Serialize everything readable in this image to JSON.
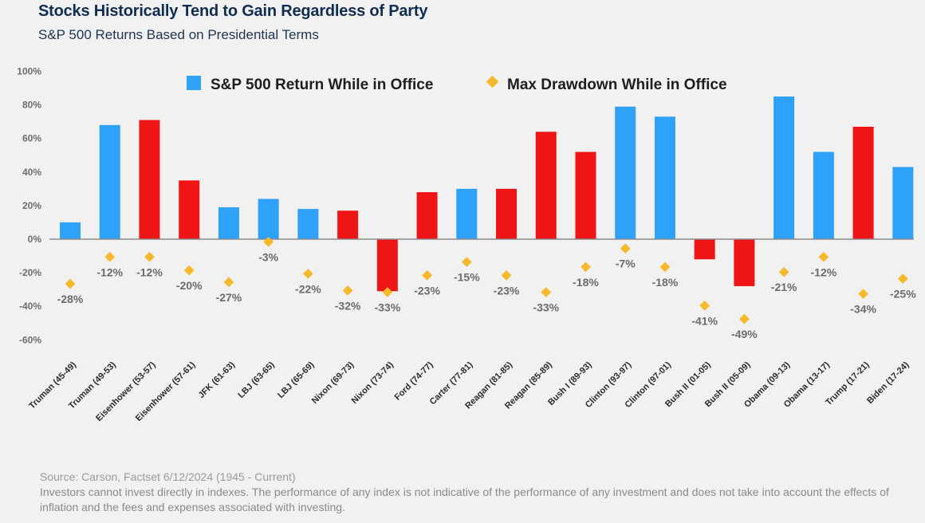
{
  "header": {
    "title": "Stocks Historically Tend to Gain Regardless of Party",
    "subtitle": "S&P 500 Returns Based on Presidential Terms"
  },
  "footer": {
    "source": "Source: Carson, Factset 6/12/2024 (1945 - Current)",
    "disclaimer": "Investors cannot invest directly in indexes. The performance of any index is not indicative of the performance of any investment and does not take into account the effects of inflation and the fees and expenses associated with investing."
  },
  "colors": {
    "democrat": "#2ea1f8",
    "republican": "#f01515",
    "drawdown": "#f6b92b",
    "axis": "#8a8a8a"
  },
  "chart_data": {
    "type": "bar",
    "title": "Stocks Historically Tend to Gain Regardless of Party",
    "subtitle": "S&P 500 Returns Based on Presidential Terms",
    "xlabel": "",
    "ylabel": "",
    "ylim": [
      -60,
      100
    ],
    "yticks": [
      100,
      80,
      60,
      40,
      20,
      0,
      -20,
      -40,
      -60
    ],
    "ytick_labels": [
      "100%",
      "80%",
      "60%",
      "40%",
      "20%",
      "0%",
      "-20%",
      "-40%",
      "-60%"
    ],
    "grid": false,
    "legend_position": "top-center",
    "legend": [
      {
        "name": "S&P 500 Return While in Office",
        "marker": "square",
        "color": "#2ea1f8"
      },
      {
        "name": "Max Drawdown While in Office",
        "marker": "diamond",
        "color": "#f6b92b"
      }
    ],
    "categories": [
      "Truman (45-49)",
      "Truman (49-53)",
      "Eisenhower (53-57)",
      "Eisenhower (57-61)",
      "JFK (61-63)",
      "LBJ (63-65)",
      "LBJ (65-69)",
      "Nixon (69-73)",
      "Nixon (73-74)",
      "Ford (74-77)",
      "Carter (77-81)",
      "Reagan (81-85)",
      "Reagan (85-89)",
      "Bush I (89-93)",
      "Clinton (93-97)",
      "Clinton (97-01)",
      "Bush II (01-05)",
      "Bush II (05-09)",
      "Obama (09-13)",
      "Obama (13-17)",
      "Trump (17-21)",
      "Biden (17-24)"
    ],
    "party": [
      "D",
      "D",
      "R",
      "R",
      "D",
      "D",
      "D",
      "R",
      "R",
      "R",
      "D",
      "R",
      "R",
      "R",
      "D",
      "D",
      "R",
      "R",
      "D",
      "D",
      "R",
      "D"
    ],
    "series": [
      {
        "name": "S&P 500 Return While in Office",
        "type": "bar",
        "values": [
          10,
          68,
          71,
          35,
          19,
          24,
          18,
          17,
          -31,
          28,
          30,
          30,
          64,
          52,
          79,
          73,
          -12,
          -28,
          85,
          52,
          67,
          43
        ]
      },
      {
        "name": "Max Drawdown While in Office",
        "type": "scatter",
        "values": [
          -28,
          -12,
          -12,
          -20,
          -27,
          -3,
          -22,
          -32,
          -33,
          -23,
          -15,
          -23,
          -33,
          -18,
          -7,
          -18,
          -41,
          -49,
          -21,
          -12,
          -34,
          -25
        ],
        "labels": [
          "-28%",
          "-12%",
          "-12%",
          "-20%",
          "-27%",
          "-3%",
          "-22%",
          "-32%",
          "-33%",
          "-23%",
          "-15%",
          "-23%",
          "-33%",
          "-18%",
          "-7%",
          "-18%",
          "-41%",
          "-49%",
          "-21%",
          "-12%",
          "-34%",
          "-25%"
        ]
      }
    ]
  }
}
